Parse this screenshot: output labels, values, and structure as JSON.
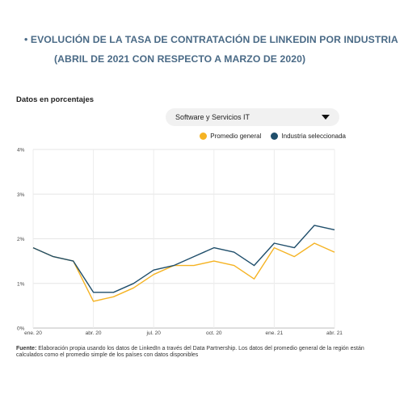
{
  "title": {
    "line1": "• EVOLUCIÓN DE LA TASA DE CONTRATACIÓN DE LINKEDIN POR INDUSTRIA",
    "line2": "(ABRIL DE 2021 CON RESPECTO A MARZO DE 2020)"
  },
  "units_label": "Datos en porcentajes",
  "dropdown": {
    "selected": "Software y Servicios IT"
  },
  "legend": [
    {
      "label": "Promedio general",
      "color": "#f5b323"
    },
    {
      "label": "Industria seleccionada",
      "color": "#1f4e6b"
    }
  ],
  "source": {
    "label": "Fuente:",
    "text": " Elaboración propia usando los datos de LinkedIn a través del Data Partnership. Los datos del promedio general de la región están calculados como el promedio simple de los países con datos disponibles"
  },
  "chart_data": {
    "type": "line",
    "ylim": [
      0,
      4
    ],
    "y_ticks": [
      "0%",
      "1%",
      "2%",
      "3%",
      "4%"
    ],
    "x_tick_labels": [
      {
        "index": 0,
        "label": "ene. 20"
      },
      {
        "index": 3,
        "label": "abr. 20"
      },
      {
        "index": 6,
        "label": "jul. 20"
      },
      {
        "index": 9,
        "label": "oct. 20"
      },
      {
        "index": 12,
        "label": "ene. 21"
      },
      {
        "index": 15,
        "label": "abr. 21"
      }
    ],
    "x": [
      "ene. 20",
      "feb. 20",
      "mar. 20",
      "abr. 20",
      "may. 20",
      "jun. 20",
      "jul. 20",
      "ago. 20",
      "sep. 20",
      "oct. 20",
      "nov. 20",
      "dic. 20",
      "ene. 21",
      "feb. 21",
      "mar. 21",
      "abr. 21"
    ],
    "grid": true,
    "series": [
      {
        "name": "Industria seleccionada",
        "color": "#1f4e6b",
        "values": [
          1.8,
          1.6,
          1.5,
          0.8,
          0.8,
          1.0,
          1.3,
          1.4,
          1.6,
          1.8,
          1.7,
          1.4,
          1.9,
          1.8,
          2.3,
          2.2
        ]
      },
      {
        "name": "Promedio general",
        "color": "#f5b323",
        "values": [
          1.8,
          1.6,
          1.5,
          0.6,
          0.7,
          0.9,
          1.2,
          1.4,
          1.4,
          1.5,
          1.4,
          1.1,
          1.8,
          1.6,
          1.9,
          1.7
        ]
      }
    ]
  }
}
